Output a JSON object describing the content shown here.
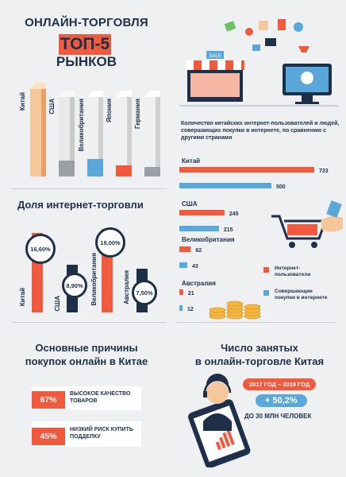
{
  "header": {
    "title": "ОНЛАЙН-ТОРГОВЛЯ",
    "top5": "ТОП-5",
    "subtitle": "РЫНКОВ"
  },
  "top_markets": [
    {
      "label": "Китай"
    },
    {
      "label": "США"
    },
    {
      "label": "Великобритания"
    },
    {
      "label": "Япония"
    },
    {
      "label": "Германия"
    }
  ],
  "share_section": {
    "title": "Доля интернет-торговли",
    "items": [
      {
        "label": "Китай",
        "value": "16,60%"
      },
      {
        "label": "США",
        "value": "8,90%"
      },
      {
        "label": "Великобритания",
        "value": "18,00%"
      },
      {
        "label": "Австралия",
        "value": "7,50%"
      }
    ]
  },
  "users_chart": {
    "title": "Количество китайских интернет-пользователей и людей, совершающих покупки в интернете, по сравнению с другими странами",
    "countries": [
      {
        "name": "Китай",
        "users": 733,
        "shoppers": 500
      },
      {
        "name": "США",
        "users": 245,
        "shoppers": 215
      },
      {
        "name": "Великобритания",
        "users": 62,
        "shoppers": 43
      },
      {
        "name": "Австралия",
        "users": 21,
        "shoppers": 12
      }
    ],
    "legend": {
      "users": "Интернет-пользователи",
      "shoppers": "Совершающие покупки в интернете"
    },
    "colors": {
      "users": "#f05a3e",
      "shoppers": "#5aa8d9"
    }
  },
  "reasons": {
    "title_line1": "Основные причины",
    "title_line2": "покупок онлайн в Китае",
    "items": [
      {
        "pct": "67%",
        "text_line1": "ВЫСОКОЕ КАЧЕСТВО",
        "text_line2": "ТОВАРОВ"
      },
      {
        "pct": "45%",
        "text_line1": "НИЗКИЙ РИСК КУПИТЬ",
        "text_line2": "ПОДДЕЛКУ"
      }
    ]
  },
  "employment": {
    "title_line1": "Число занятых",
    "title_line2": "в онлайн-торговле Китая",
    "period": "2017 ГОД – 2018 ГОД",
    "growth": "+ 50,2%",
    "note": "ДО 30 МЛН ЧЕЛОВЕК"
  },
  "icons": {
    "shop": "store-front-icon",
    "cart": "shopping-cart-icon",
    "coins": "coin-stack-icon",
    "operator": "call-center-operator-icon",
    "phone": "smartphone-icon"
  }
}
